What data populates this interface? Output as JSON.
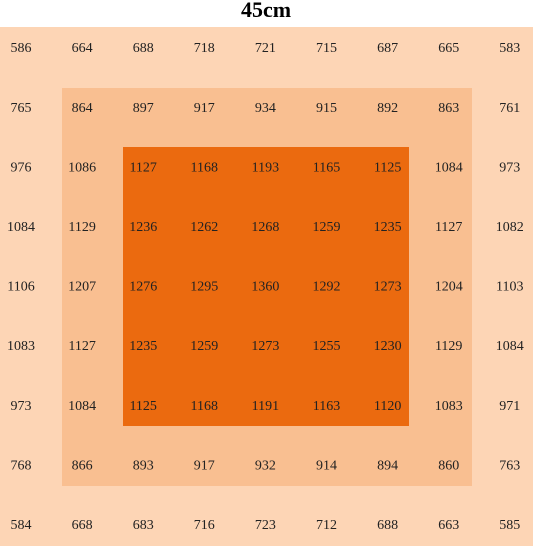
{
  "title": "45cm",
  "grid": {
    "rows": [
      [
        "586",
        "664",
        "688",
        "718",
        "721",
        "715",
        "687",
        "665",
        "583"
      ],
      [
        "765",
        "864",
        "897",
        "917",
        "934",
        "915",
        "892",
        "863",
        "761"
      ],
      [
        "976",
        "1086",
        "1127",
        "1168",
        "1193",
        "1165",
        "1125",
        "1084",
        "973"
      ],
      [
        "1084",
        "1129",
        "1236",
        "1262",
        "1268",
        "1259",
        "1235",
        "1127",
        "1082"
      ],
      [
        "1106",
        "1207",
        "1276",
        "1295",
        "1360",
        "1292",
        "1273",
        "1204",
        "1103"
      ],
      [
        "1083",
        "1127",
        "1235",
        "1259",
        "1273",
        "1255",
        "1230",
        "1129",
        "1084"
      ],
      [
        "973",
        "1084",
        "1125",
        "1168",
        "1191",
        "1163",
        "1120",
        "1083",
        "971"
      ],
      [
        "768",
        "866",
        "893",
        "917",
        "932",
        "914",
        "894",
        "860",
        "763"
      ],
      [
        "584",
        "668",
        "683",
        "716",
        "723",
        "712",
        "688",
        "663",
        "585"
      ]
    ]
  }
}
